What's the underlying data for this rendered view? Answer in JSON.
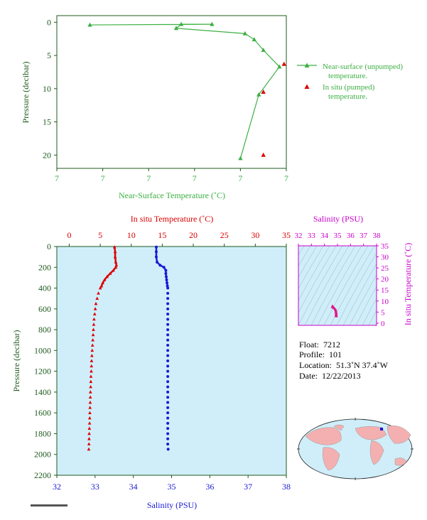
{
  "colors": {
    "green": "#3cb043",
    "axis_green": "#1e5a1e",
    "red": "#dd0000",
    "blue": "#1a1ad6",
    "magenta": "#cc00cc",
    "panel_bg": "#cfeefa",
    "map_land": "#f4b0b0",
    "map_ocean": "#cfeefa"
  },
  "chart_data": [
    {
      "type": "line",
      "name": "near-surface",
      "xlabel": "Near-Surface Temperature (˚C)",
      "ylabel": "Pressure (decibar)",
      "x_tick_labels": [
        "7",
        "7",
        "7",
        "7",
        "7",
        "7"
      ],
      "y_ticks": [
        0,
        5,
        10,
        15,
        20
      ],
      "ylim": [
        -1,
        22
      ],
      "xlim": [
        0,
        5
      ],
      "y_reversed": true,
      "legend_placement": "right",
      "legend": [
        {
          "label_line1": "Near-surface (unpumped)",
          "label_line2": "temperature."
        },
        {
          "label_line1": "In situ (pumped)",
          "label_line2": "temperature."
        }
      ],
      "series": [
        {
          "name": "Near-surface (unpumped) temperature.",
          "marker": "triangle",
          "x": [
            0.72,
            3.38,
            2.71,
            2.6,
            4.1,
            4.3,
            4.5,
            4.85,
            4.4,
            4.0
          ],
          "y": [
            0.4,
            0.3,
            0.3,
            0.9,
            1.7,
            2.6,
            4.2,
            6.7,
            10.9,
            20.5
          ]
        },
        {
          "name": "In situ (pumped) temperature.",
          "marker": "triangle",
          "x": [
            4.95,
            4.5,
            4.5
          ],
          "y": [
            6.3,
            10.5,
            20.0
          ]
        }
      ]
    },
    {
      "type": "line",
      "name": "profile",
      "ylabel": "Pressure (decibar)",
      "y_ticks": [
        0,
        200,
        400,
        600,
        800,
        1000,
        1200,
        1400,
        1600,
        1800,
        2000,
        2200
      ],
      "ylim": [
        0,
        2200
      ],
      "y_reversed": true,
      "top_axis": {
        "label": "In situ Temperature (˚C)",
        "ticks": [
          0,
          5,
          10,
          15,
          20,
          25,
          30,
          35
        ],
        "lim": [
          -2,
          35
        ]
      },
      "bottom_axis": {
        "label": "Salinity (PSU)",
        "ticks": [
          32,
          33,
          34,
          35,
          36,
          37,
          38
        ],
        "lim": [
          32,
          38
        ]
      },
      "series": [
        {
          "name": "temperature",
          "axis": "top",
          "pressure": [
            5,
            50,
            100,
            150,
            180,
            200,
            230,
            260,
            290,
            320,
            350,
            380,
            400,
            450,
            500,
            550,
            600,
            650,
            700,
            750,
            800,
            850,
            900,
            950,
            1000,
            1050,
            1100,
            1150,
            1200,
            1250,
            1300,
            1350,
            1400,
            1450,
            1500,
            1550,
            1600,
            1650,
            1700,
            1750,
            1800,
            1850,
            1900,
            1950
          ],
          "values": [
            7.3,
            7.4,
            7.4,
            7.5,
            7.6,
            7.5,
            7.1,
            6.6,
            6.1,
            5.7,
            5.4,
            5.2,
            5.0,
            4.7,
            4.5,
            4.3,
            4.2,
            4.1,
            4.0,
            3.95,
            3.9,
            3.85,
            3.8,
            3.75,
            3.7,
            3.65,
            3.6,
            3.58,
            3.55,
            3.5,
            3.48,
            3.45,
            3.42,
            3.4,
            3.38,
            3.35,
            3.32,
            3.3,
            3.28,
            3.25,
            3.22,
            3.2,
            3.18,
            3.15
          ]
        },
        {
          "name": "salinity",
          "axis": "bottom",
          "pressure": [
            5,
            50,
            100,
            150,
            180,
            200,
            230,
            260,
            290,
            320,
            350,
            380,
            400,
            450,
            500,
            550,
            600,
            650,
            700,
            750,
            800,
            850,
            900,
            950,
            1000,
            1050,
            1100,
            1150,
            1200,
            1250,
            1300,
            1350,
            1400,
            1450,
            1500,
            1550,
            1600,
            1650,
            1700,
            1750,
            1800,
            1850,
            1900,
            1950
          ],
          "values": [
            34.6,
            34.6,
            34.6,
            34.62,
            34.7,
            34.8,
            34.85,
            34.85,
            34.86,
            34.87,
            34.88,
            34.89,
            34.9,
            34.9,
            34.9,
            34.9,
            34.9,
            34.9,
            34.9,
            34.9,
            34.9,
            34.9,
            34.9,
            34.9,
            34.9,
            34.9,
            34.9,
            34.9,
            34.9,
            34.9,
            34.9,
            34.9,
            34.9,
            34.9,
            34.9,
            34.9,
            34.9,
            34.9,
            34.9,
            34.9,
            34.9,
            34.9,
            34.9,
            34.91
          ]
        }
      ]
    },
    {
      "type": "scatter",
      "name": "ts-diagram",
      "xlabel": "Salinity (PSU)",
      "ylabel": "In situ Temperature (˚C)",
      "x_ticks": [
        32,
        33,
        34,
        35,
        36,
        37,
        38
      ],
      "y_ticks": [
        0,
        5,
        10,
        15,
        20,
        25,
        30,
        35
      ],
      "xlim": [
        32,
        38
      ],
      "ylim": [
        -1,
        35
      ],
      "series": [
        {
          "name": "T-S",
          "x": [
            34.6,
            34.62,
            34.7,
            34.85,
            34.88,
            34.9,
            34.9,
            34.9,
            34.91
          ],
          "y": [
            7.4,
            7.6,
            7.0,
            6.0,
            5.2,
            4.5,
            4.0,
            3.5,
            3.2
          ]
        }
      ]
    }
  ],
  "info": {
    "float_label": "Float:",
    "float_value": "7212",
    "profile_label": "Profile:",
    "profile_value": "101",
    "location_label": "Location:",
    "location_value": "51.3˚N  37.4˚W",
    "date_label": "Date:",
    "date_value": "12/22/2013"
  }
}
